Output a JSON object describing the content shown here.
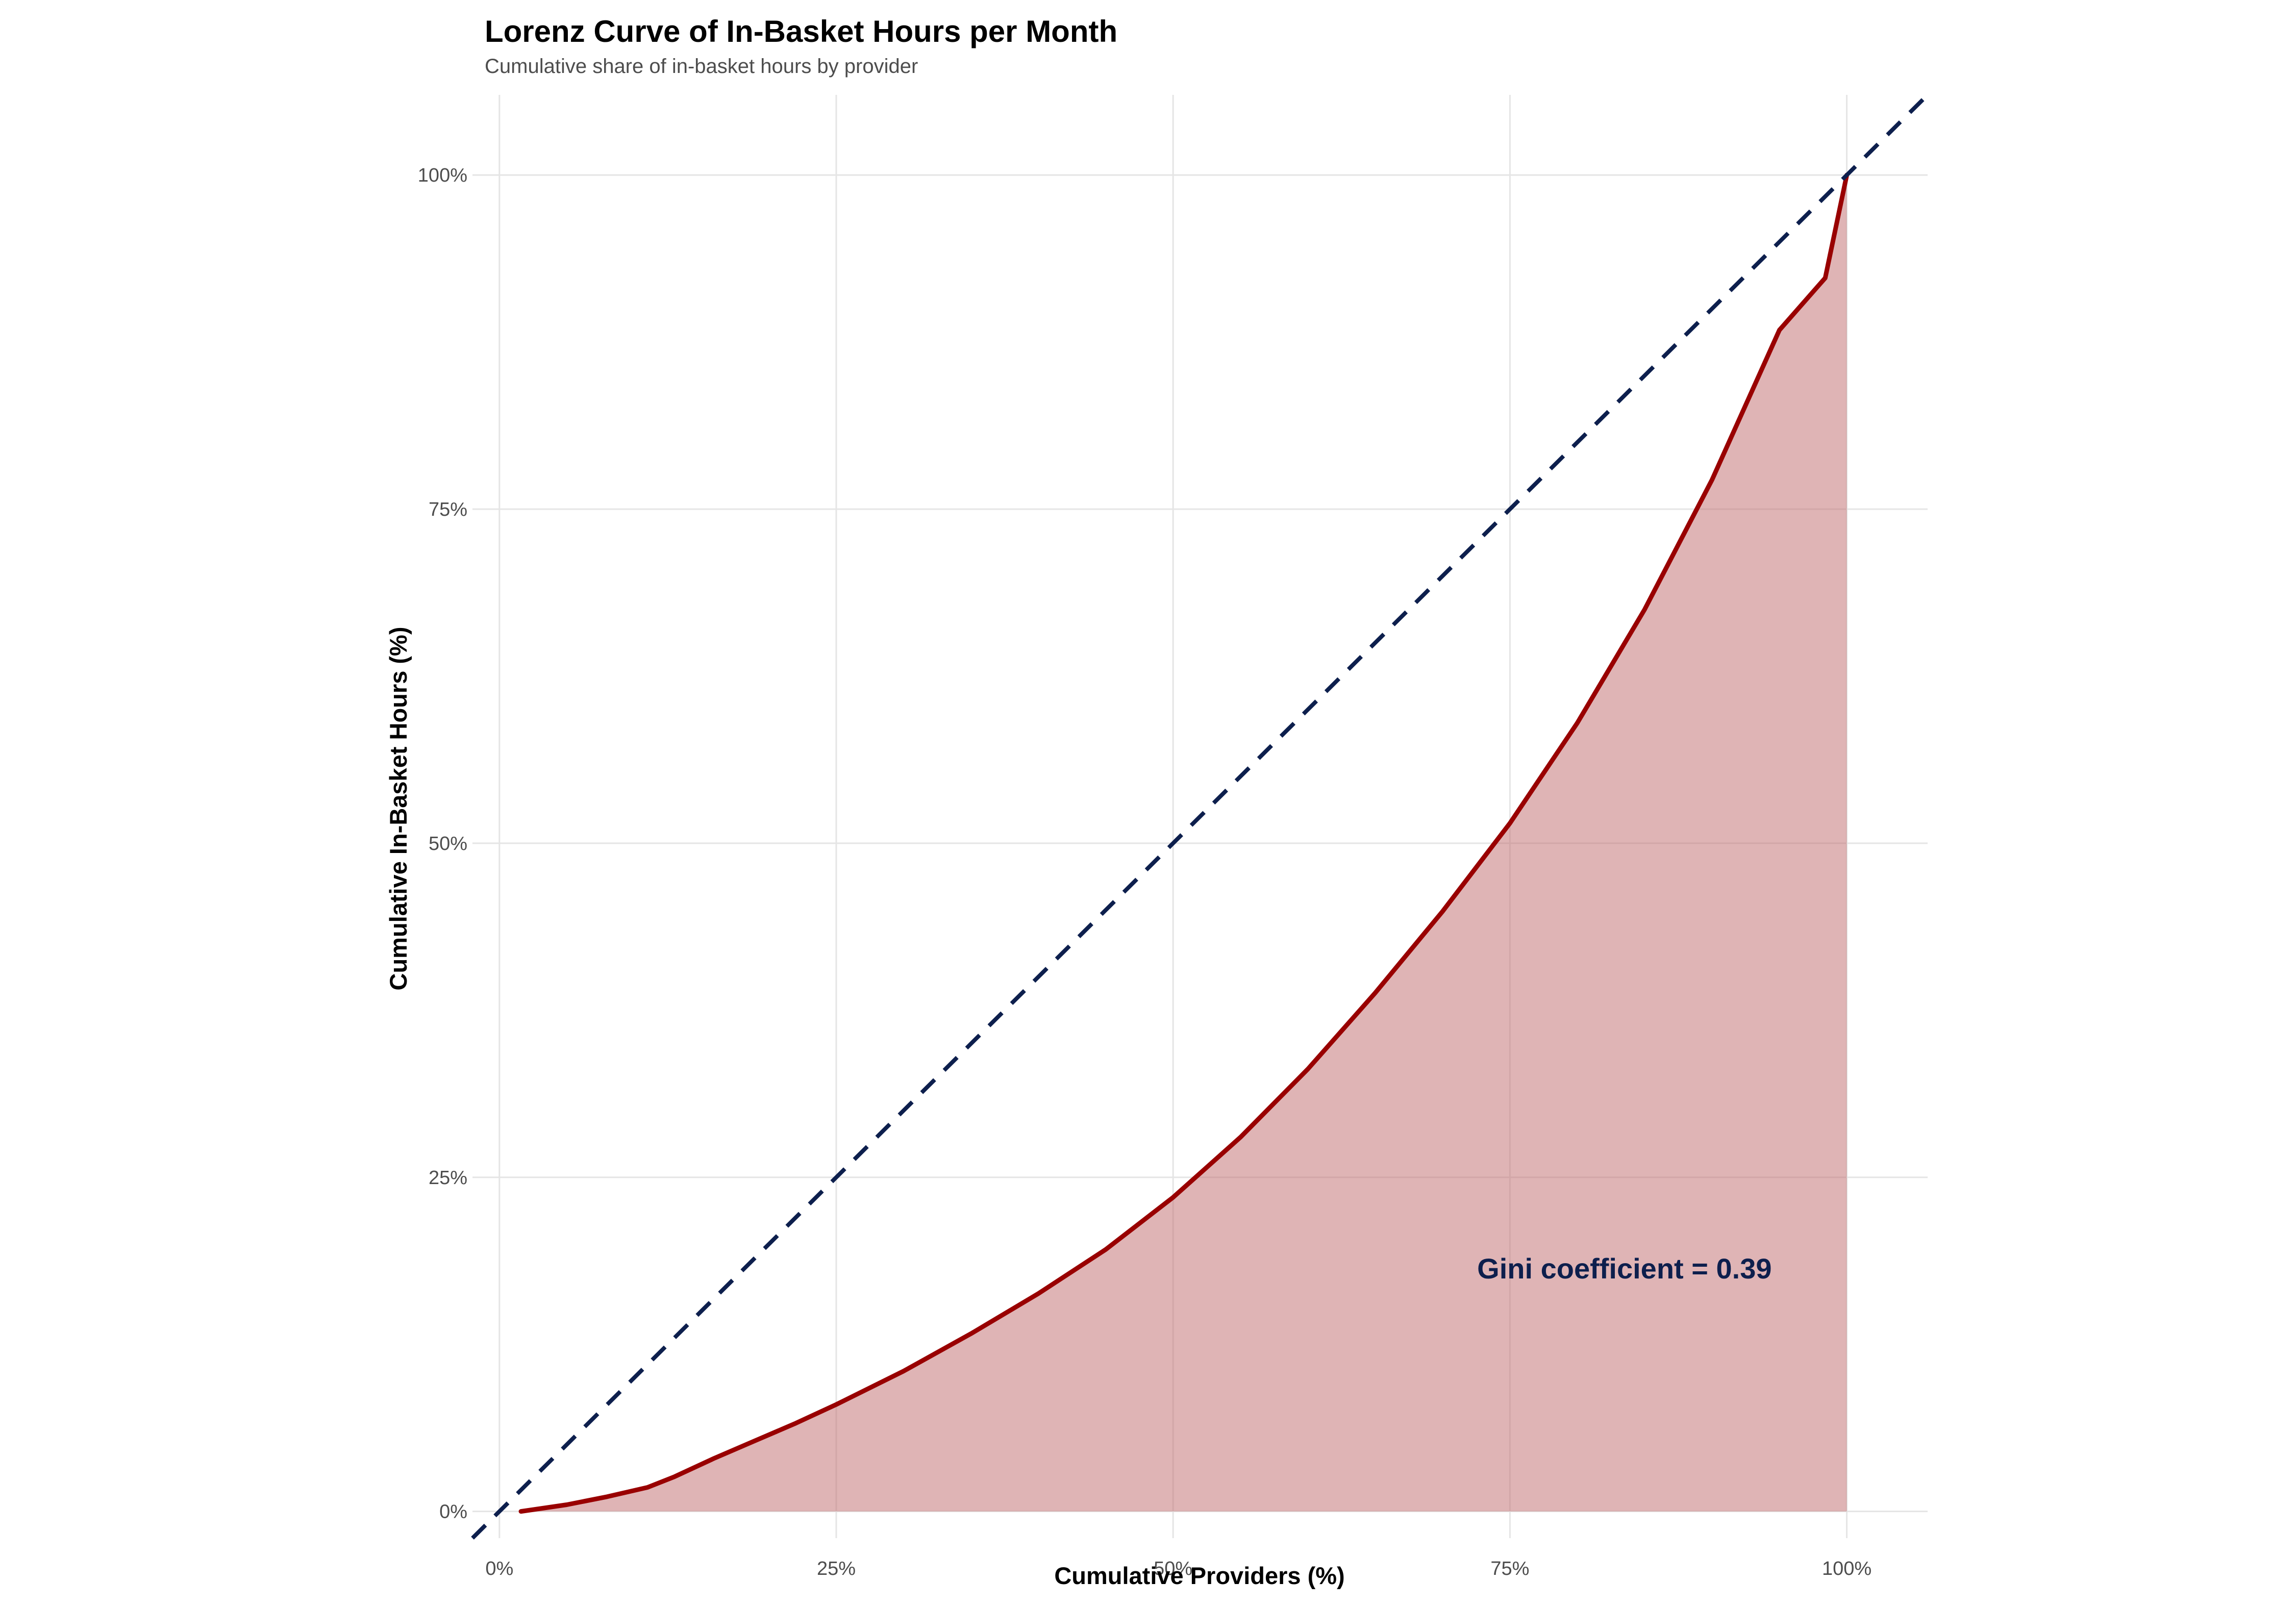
{
  "chart_data": {
    "type": "area",
    "title": "Lorenz Curve of In-Basket Hours per Month",
    "subtitle": "Cumulative share of in-basket hours by provider",
    "xlabel": "Cumulative Providers (%)",
    "ylabel": "Cumulative In-Basket Hours (%)",
    "xlim": [
      -0.02,
      1.06
    ],
    "ylim": [
      -0.02,
      1.06
    ],
    "x_ticks": [
      0,
      0.25,
      0.5,
      0.75,
      1.0
    ],
    "x_tick_labels": [
      "0%",
      "25%",
      "50%",
      "75%",
      "100%"
    ],
    "y_ticks": [
      0,
      0.25,
      0.5,
      0.75,
      1.0
    ],
    "y_tick_labels": [
      "0%",
      "25%",
      "50%",
      "75%",
      "100%"
    ],
    "grid": true,
    "legend": "none",
    "series": [
      {
        "role": "lorenz-curve",
        "color": "#990000",
        "fill_color": "#c0696b",
        "fill_opacity": 0.5,
        "x": [
          0.016,
          0.05,
          0.08,
          0.11,
          0.13,
          0.16,
          0.19,
          0.22,
          0.25,
          0.3,
          0.35,
          0.4,
          0.45,
          0.5,
          0.55,
          0.6,
          0.65,
          0.7,
          0.75,
          0.8,
          0.85,
          0.9,
          0.95,
          0.984,
          1.0
        ],
        "y": [
          0.0,
          0.005,
          0.011,
          0.018,
          0.026,
          0.04,
          0.053,
          0.066,
          0.08,
          0.105,
          0.133,
          0.163,
          0.196,
          0.235,
          0.28,
          0.331,
          0.388,
          0.449,
          0.515,
          0.59,
          0.675,
          0.772,
          0.884,
          0.923,
          1.0
        ]
      },
      {
        "role": "equality-line",
        "color": "#0d1f4d",
        "dash": "dashed",
        "x": [
          -0.02,
          1.06
        ],
        "y": [
          -0.02,
          1.06
        ]
      }
    ],
    "annotations": [
      {
        "text": "Gini coefficient = 0.39",
        "x": 0.835,
        "y": 0.182,
        "color": "#0d1f4d"
      }
    ]
  }
}
